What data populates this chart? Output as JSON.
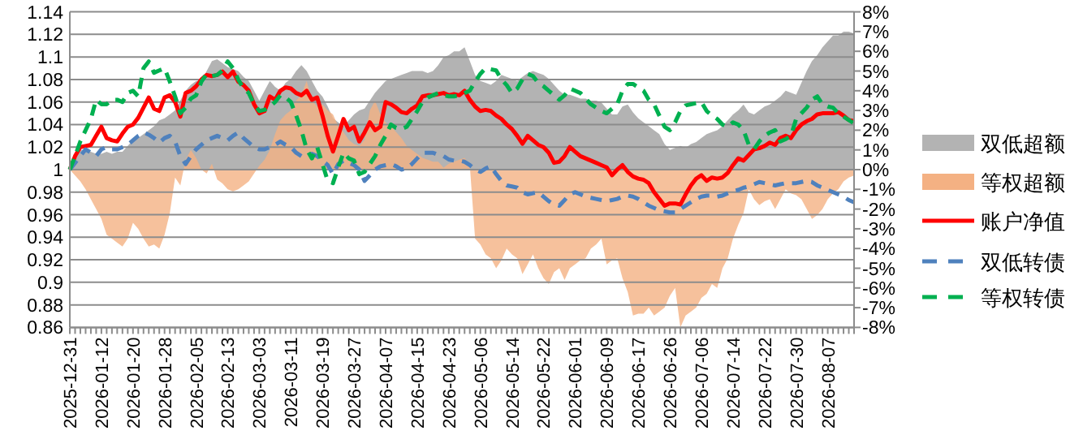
{
  "chart_data": {
    "type": "line",
    "categories": [
      "2025-12-31",
      null,
      null,
      null,
      null,
      null,
      "2026-01-12",
      null,
      null,
      null,
      null,
      null,
      "2026-01-20",
      null,
      null,
      null,
      null,
      null,
      "2026-01-28",
      null,
      null,
      null,
      null,
      null,
      "2026-02-05",
      null,
      null,
      null,
      null,
      null,
      "2026-02-13",
      null,
      null,
      null,
      null,
      null,
      "2026-03-03",
      null,
      null,
      null,
      null,
      null,
      "2026-03-11",
      null,
      null,
      null,
      null,
      null,
      "2026-03-19",
      null,
      null,
      null,
      null,
      null,
      "2026-03-27",
      null,
      null,
      null,
      null,
      null,
      "2026-04-07",
      null,
      null,
      null,
      null,
      null,
      "2026-04-15",
      null,
      null,
      null,
      null,
      null,
      "2026-04-23",
      null,
      null,
      null,
      null,
      null,
      "2026-05-06",
      null,
      null,
      null,
      null,
      null,
      "2026-05-14",
      null,
      null,
      null,
      null,
      null,
      "2026-05-22",
      null,
      null,
      null,
      null,
      null,
      "2026-06-01",
      null,
      null,
      null,
      null,
      null,
      "2026-06-09",
      null,
      null,
      null,
      null,
      null,
      "2026-06-17",
      null,
      null,
      null,
      null,
      null,
      "2026-06-26",
      null,
      null,
      null,
      null,
      null,
      "2026-07-06",
      null,
      null,
      null,
      null,
      null,
      "2026-07-14",
      null,
      null,
      null,
      null,
      null,
      "2026-07-22",
      null,
      null,
      null,
      null,
      null,
      "2026-07-30",
      null,
      null,
      null,
      null,
      null,
      "2026-08-07",
      null,
      null,
      null,
      null,
      null
    ],
    "series": [
      {
        "name": "双低超额",
        "type": "area",
        "axis": "y2",
        "color": "#b3b3b3",
        "values": [
          0,
          0.5,
          1.0,
          1.0,
          0.9,
          0.8,
          0.8,
          0.9,
          0.8,
          0.9,
          0.9,
          1.2,
          1.5,
          1.6,
          1.8,
          2.0,
          2.2,
          2.5,
          2.6,
          2.8,
          3.0,
          3.5,
          4.0,
          4.3,
          4.5,
          4.5,
          5.0,
          5.5,
          5.6,
          5.4,
          5.2,
          5.1,
          5.0,
          4.7,
          4.5,
          4.0,
          3.5,
          4.0,
          4.5,
          4.2,
          4.0,
          4.4,
          4.6,
          5.0,
          5.3,
          5.0,
          4.5,
          4.0,
          3.7,
          3.2,
          2.6,
          2.4,
          2.2,
          2.5,
          2.8,
          3.0,
          3.1,
          3.5,
          3.9,
          4.2,
          4.5,
          4.6,
          4.7,
          4.8,
          4.9,
          5.0,
          5.0,
          5.0,
          4.9,
          5.0,
          5.3,
          5.7,
          5.8,
          6.0,
          6.0,
          6.2,
          5.5,
          4.8,
          4.5,
          4.4,
          4.3,
          4.5,
          4.8,
          4.7,
          4.6,
          4.5,
          4.7,
          4.9,
          5.0,
          4.9,
          4.8,
          4.6,
          4.3,
          4.0,
          3.8,
          3.8,
          3.7,
          3.6,
          3.6,
          3.5,
          3.5,
          3.4,
          3.1,
          2.8,
          2.8,
          3.2,
          3.3,
          2.9,
          2.6,
          2.4,
          2.2,
          2.0,
          1.8,
          1.3,
          1.0,
          1.1,
          1.2,
          1.1,
          1.3,
          1.4,
          1.6,
          1.8,
          1.9,
          2.0,
          2.2,
          2.5,
          2.8,
          3.0,
          3.3,
          2.9,
          2.8,
          3.0,
          3.2,
          3.3,
          3.5,
          3.7,
          4.0,
          3.9,
          3.8,
          4.4,
          5.0,
          5.5,
          5.8,
          6.2,
          6.5,
          6.8,
          6.8,
          7.0,
          7.0,
          6.9
        ]
      },
      {
        "name": "等权超额",
        "type": "area",
        "axis": "y2",
        "color": "#f4b183",
        "values": [
          0,
          -0.3,
          -0.6,
          -1.0,
          -1.5,
          -2.0,
          -2.5,
          -3.3,
          -3.5,
          -3.7,
          -3.9,
          -3.5,
          -2.7,
          -3.0,
          -3.5,
          -3.9,
          -3.8,
          -4.0,
          -3.3,
          -2.2,
          -0.4,
          -0.8,
          0.5,
          1.0,
          0.6,
          0,
          -0.2,
          0.3,
          -0.5,
          -0.7,
          -1.0,
          -1.1,
          -1.0,
          -0.8,
          -0.6,
          -0.2,
          0.2,
          0.5,
          1.0,
          1.8,
          2.5,
          2.8,
          3.0,
          3.5,
          3.8,
          4.5,
          3.5,
          3.2,
          3.3,
          3.0,
          2.8,
          2.2,
          1.9,
          1.5,
          1.3,
          1.2,
          1.5,
          3.0,
          3.5,
          2.8,
          2.4,
          2.2,
          1.9,
          1.6,
          1.2,
          1.0,
          0.8,
          0.6,
          0.5,
          0.4,
          0.4,
          0.1,
          0.3,
          0.4,
          0.5,
          0.6,
          0.2,
          -3.5,
          -3.8,
          -4.3,
          -4.5,
          -5.0,
          -4.6,
          -4.0,
          -4.3,
          -4.5,
          -5.3,
          -4.8,
          -4.3,
          -5.0,
          -5.5,
          -5.8,
          -5.2,
          -5.0,
          -5.6,
          -5.0,
          -4.8,
          -4.6,
          -4.5,
          -4.0,
          -3.8,
          -3.5,
          -4.8,
          -4.6,
          -4.5,
          -5.5,
          -6.2,
          -7.4,
          -7.3,
          -7.3,
          -7.0,
          -7.4,
          -7.2,
          -7.0,
          -6.4,
          -6.0,
          -8.0,
          -7.4,
          -7.2,
          -7.0,
          -6.5,
          -6.3,
          -5.8,
          -6.0,
          -5.0,
          -4.5,
          -3.5,
          -2.8,
          -2.2,
          -1.0,
          -1.5,
          -1.8,
          -1.6,
          -1.5,
          -2.0,
          -1.5,
          -1.0,
          -1.2,
          -1.3,
          -1.5,
          -2.0,
          -2.5,
          -2.3,
          -2.0,
          -1.5,
          -1.2,
          -1.0,
          -0.6,
          -0.4,
          -0.3
        ]
      },
      {
        "name": "账户净值",
        "type": "line",
        "line_style": "solid",
        "color": "#ff0000",
        "values": [
          1.0,
          1.012,
          1.02,
          1.021,
          1.022,
          1.03,
          1.038,
          1.028,
          1.026,
          1.025,
          1.032,
          1.038,
          1.04,
          1.046,
          1.055,
          1.064,
          1.054,
          1.052,
          1.064,
          1.066,
          1.06,
          1.047,
          1.068,
          1.07,
          1.074,
          1.08,
          1.084,
          1.083,
          1.084,
          1.087,
          1.082,
          1.087,
          1.078,
          1.075,
          1.07,
          1.058,
          1.05,
          1.052,
          1.065,
          1.062,
          1.07,
          1.073,
          1.072,
          1.068,
          1.066,
          1.07,
          1.062,
          1.064,
          1.048,
          1.03,
          1.016,
          1.03,
          1.045,
          1.035,
          1.038,
          1.025,
          1.033,
          1.042,
          1.035,
          1.038,
          1.06,
          1.058,
          1.055,
          1.051,
          1.05,
          1.054,
          1.057,
          1.065,
          1.066,
          1.066,
          1.067,
          1.068,
          1.066,
          1.067,
          1.066,
          1.07,
          1.062,
          1.056,
          1.052,
          1.053,
          1.052,
          1.048,
          1.045,
          1.04,
          1.036,
          1.03,
          1.023,
          1.03,
          1.026,
          1.022,
          1.02,
          1.015,
          1.006,
          1.007,
          1.012,
          1.02,
          1.016,
          1.012,
          1.01,
          1.008,
          1.006,
          1.004,
          1.002,
          0.995,
          1.0,
          1.004,
          0.998,
          0.994,
          0.992,
          0.991,
          0.988,
          0.98,
          0.974,
          0.968,
          0.97,
          0.97,
          0.969,
          0.978,
          0.986,
          0.992,
          0.995,
          0.99,
          0.993,
          0.992,
          0.993,
          0.997,
          1.004,
          1.01,
          1.008,
          1.013,
          1.018,
          1.019,
          1.021,
          1.024,
          1.022,
          1.028,
          1.03,
          1.028,
          1.035,
          1.04,
          1.043,
          1.045,
          1.049,
          1.05,
          1.05,
          1.05,
          1.051,
          1.048,
          1.044,
          1.043
        ]
      },
      {
        "name": "双低转债",
        "type": "line",
        "line_style": "dashed",
        "color": "#4f81bd",
        "values": [
          1.0,
          1.006,
          1.012,
          1.018,
          1.015,
          1.012,
          1.018,
          1.02,
          1.018,
          1.018,
          1.02,
          1.022,
          1.026,
          1.03,
          1.033,
          1.031,
          1.028,
          1.024,
          1.028,
          1.03,
          1.025,
          1.012,
          1.005,
          1.012,
          1.018,
          1.022,
          1.026,
          1.028,
          1.03,
          1.028,
          1.026,
          1.03,
          1.033,
          1.028,
          1.024,
          1.02,
          1.018,
          1.018,
          1.02,
          1.022,
          1.025,
          1.022,
          1.02,
          1.015,
          1.012,
          1.012,
          1.014,
          1.012,
          1.008,
          1.004,
          0.996,
          1.005,
          1.008,
          1.006,
          1.004,
          1.0,
          0.99,
          0.995,
          1.0,
          1.003,
          1.004,
          1.005,
          1.003,
          1.0,
          1.001,
          1.005,
          1.01,
          1.015,
          1.015,
          1.015,
          1.013,
          1.012,
          1.009,
          1.008,
          1.008,
          1.007,
          1.004,
          1.0,
          0.998,
          1.001,
          1.003,
          0.996,
          0.99,
          0.986,
          0.985,
          0.984,
          0.98,
          0.978,
          0.979,
          0.98,
          0.976,
          0.972,
          0.969,
          0.968,
          0.973,
          0.978,
          0.98,
          0.978,
          0.976,
          0.975,
          0.974,
          0.973,
          0.972,
          0.973,
          0.974,
          0.976,
          0.977,
          0.976,
          0.974,
          0.971,
          0.968,
          0.966,
          0.964,
          0.963,
          0.962,
          0.962,
          0.965,
          0.968,
          0.971,
          0.974,
          0.976,
          0.977,
          0.977,
          0.976,
          0.977,
          0.979,
          0.981,
          0.982,
          0.984,
          0.985,
          0.987,
          0.989,
          0.988,
          0.987,
          0.986,
          0.987,
          0.988,
          0.988,
          0.988,
          0.989,
          0.99,
          0.989,
          0.986,
          0.984,
          0.982,
          0.98,
          0.978,
          0.976,
          0.973,
          0.971
        ]
      },
      {
        "name": "等权转债",
        "type": "line",
        "line_style": "dashed",
        "color": "#00b050",
        "values": [
          1.0,
          1.012,
          1.025,
          1.035,
          1.045,
          1.062,
          1.058,
          1.058,
          1.062,
          1.062,
          1.06,
          1.068,
          1.07,
          1.065,
          1.09,
          1.096,
          1.086,
          1.088,
          1.09,
          1.078,
          1.065,
          1.05,
          1.055,
          1.063,
          1.066,
          1.078,
          1.085,
          1.083,
          1.084,
          1.088,
          1.096,
          1.09,
          1.08,
          1.072,
          1.068,
          1.058,
          1.052,
          1.053,
          1.056,
          1.06,
          1.066,
          1.064,
          1.06,
          1.048,
          1.035,
          1.018,
          1.01,
          1.02,
          1.005,
          0.99,
          0.988,
          1.002,
          1.015,
          1.01,
          1.008,
          0.996,
          0.998,
          1.005,
          1.012,
          1.022,
          1.03,
          1.04,
          1.037,
          1.036,
          1.038,
          1.045,
          1.052,
          1.06,
          1.064,
          1.066,
          1.068,
          1.066,
          1.065,
          1.065,
          1.066,
          1.068,
          1.07,
          1.078,
          1.085,
          1.09,
          1.089,
          1.088,
          1.08,
          1.075,
          1.068,
          1.072,
          1.08,
          1.085,
          1.083,
          1.077,
          1.074,
          1.07,
          1.066,
          1.062,
          1.066,
          1.072,
          1.07,
          1.068,
          1.063,
          1.058,
          1.055,
          1.052,
          1.05,
          1.054,
          1.058,
          1.07,
          1.076,
          1.076,
          1.073,
          1.07,
          1.062,
          1.058,
          1.048,
          1.038,
          1.035,
          1.042,
          1.052,
          1.057,
          1.058,
          1.059,
          1.06,
          1.052,
          1.048,
          1.045,
          1.04,
          1.038,
          1.042,
          1.04,
          1.035,
          1.022,
          1.018,
          1.025,
          1.03,
          1.033,
          1.035,
          1.025,
          1.027,
          1.03,
          1.045,
          1.05,
          1.055,
          1.062,
          1.065,
          1.058,
          1.056,
          1.055,
          1.05,
          1.047,
          1.044,
          1.041
        ]
      }
    ],
    "ylim": [
      0.86,
      1.14
    ],
    "yticks": [
      0.86,
      0.88,
      0.9,
      0.92,
      0.94,
      0.96,
      0.98,
      1,
      1.02,
      1.04,
      1.06,
      1.08,
      1.1,
      1.12,
      1.14
    ],
    "y2lim": [
      -8,
      8
    ],
    "y2ticks": [
      {
        "value": -8,
        "label": "-8%"
      },
      {
        "value": -7,
        "label": "-7%"
      },
      {
        "value": -6,
        "label": "-6%"
      },
      {
        "value": -5,
        "label": "-5%"
      },
      {
        "value": -4,
        "label": "-4%"
      },
      {
        "value": -3,
        "label": "-3%"
      },
      {
        "value": -2,
        "label": "-2%"
      },
      {
        "value": -1,
        "label": "-1%"
      },
      {
        "value": 0,
        "label": "0%"
      },
      {
        "value": 1,
        "label": "1%"
      },
      {
        "value": 2,
        "label": "2%"
      },
      {
        "value": 3,
        "label": "3%"
      },
      {
        "value": 4,
        "label": "4%"
      },
      {
        "value": 5,
        "label": "5%"
      },
      {
        "value": 6,
        "label": "6%"
      },
      {
        "value": 7,
        "label": "7%"
      },
      {
        "value": 8,
        "label": "8%"
      }
    ],
    "grid": "y",
    "legend": "right"
  }
}
